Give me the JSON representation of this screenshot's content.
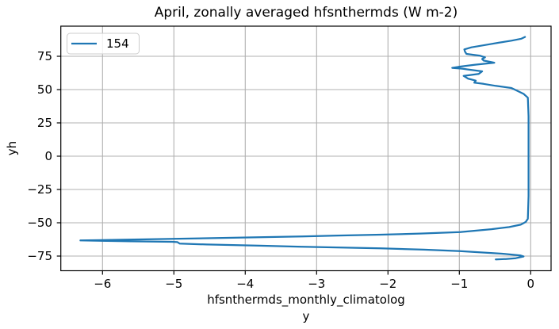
{
  "figure": {
    "background": "#ffffff"
  },
  "colors": {
    "line": "#1f77b4",
    "grid": "#b0b0b0",
    "spine": "#000000",
    "legend_border": "#cccccc",
    "legend_fill": "#ffffff"
  },
  "chart_data": {
    "type": "line",
    "title": "April, zonally averaged hfsnthermds (W m-2)",
    "xlabel_lines": [
      "hfsnthermds_monthly_climatolog",
      "y"
    ],
    "ylabel": "yh",
    "xlim": [
      -6.59,
      0.29
    ],
    "ylim": [
      -86.0,
      97.6
    ],
    "grid": true,
    "legend": {
      "position": "upper-left"
    },
    "xticks": [
      {
        "v": -6,
        "label": "−6"
      },
      {
        "v": -5,
        "label": "−5"
      },
      {
        "v": -4,
        "label": "−4"
      },
      {
        "v": -3,
        "label": "−3"
      },
      {
        "v": -2,
        "label": "−2"
      },
      {
        "v": -1,
        "label": "−1"
      },
      {
        "v": 0,
        "label": "0"
      }
    ],
    "yticks": [
      {
        "v": 75,
        "label": "75"
      },
      {
        "v": 50,
        "label": "50"
      },
      {
        "v": 25,
        "label": "25"
      },
      {
        "v": 0,
        "label": "0"
      },
      {
        "v": -25,
        "label": "−25"
      },
      {
        "v": -50,
        "label": "−50"
      },
      {
        "v": -75,
        "label": "−75"
      }
    ],
    "series": [
      {
        "name": "154",
        "color": "#1f77b4",
        "points": [
          [
            -0.08,
            89.5
          ],
          [
            -0.13,
            88.2
          ],
          [
            -0.27,
            86.7
          ],
          [
            -0.45,
            85.2
          ],
          [
            -0.6,
            83.8
          ],
          [
            -0.83,
            81.7
          ],
          [
            -0.93,
            80.2
          ],
          [
            -0.92,
            78.4
          ],
          [
            -0.9,
            76.8
          ],
          [
            -0.71,
            75.4
          ],
          [
            -0.64,
            74.2
          ],
          [
            -0.68,
            72.9
          ],
          [
            -0.66,
            71.8
          ],
          [
            -0.51,
            70.2
          ],
          [
            -0.79,
            68.6
          ],
          [
            -1.01,
            67.1
          ],
          [
            -1.1,
            66.3
          ],
          [
            -0.96,
            65.7
          ],
          [
            -0.88,
            65.1
          ],
          [
            -0.68,
            63.7
          ],
          [
            -0.73,
            61.7
          ],
          [
            -0.94,
            60.3
          ],
          [
            -0.88,
            58.3
          ],
          [
            -0.77,
            56.7
          ],
          [
            -0.79,
            55.2
          ],
          [
            -0.66,
            54.3
          ],
          [
            -0.49,
            52.8
          ],
          [
            -0.27,
            51.2
          ],
          [
            -0.1,
            46.8
          ],
          [
            -0.04,
            43.9
          ],
          [
            -0.03,
            30.0
          ],
          [
            -0.03,
            10.0
          ],
          [
            -0.03,
            -10.0
          ],
          [
            -0.03,
            -30.0
          ],
          [
            -0.04,
            -47.0
          ],
          [
            -0.07,
            -49.4
          ],
          [
            -0.14,
            -51.4
          ],
          [
            -0.3,
            -53.2
          ],
          [
            -0.55,
            -54.8
          ],
          [
            -0.99,
            -57.0
          ],
          [
            -1.55,
            -58.1
          ],
          [
            -2.1,
            -58.9
          ],
          [
            -2.7,
            -59.6
          ],
          [
            -3.21,
            -60.3
          ],
          [
            -4.1,
            -61.2
          ],
          [
            -5.0,
            -62.1
          ],
          [
            -5.8,
            -62.8
          ],
          [
            -6.31,
            -63.3
          ],
          [
            -5.6,
            -63.9
          ],
          [
            -5.03,
            -64.3
          ],
          [
            -4.95,
            -64.5
          ],
          [
            -4.92,
            -65.6
          ],
          [
            -4.54,
            -66.3
          ],
          [
            -3.8,
            -67.2
          ],
          [
            -3.21,
            -68.0
          ],
          [
            -2.1,
            -69.2
          ],
          [
            -1.5,
            -70.2
          ],
          [
            -0.99,
            -71.3
          ],
          [
            -0.4,
            -73.2
          ],
          [
            -0.14,
            -74.6
          ],
          [
            -0.1,
            -75.3
          ],
          [
            -0.21,
            -76.6
          ],
          [
            -0.35,
            -77.2
          ],
          [
            -0.49,
            -77.5
          ]
        ]
      }
    ]
  }
}
